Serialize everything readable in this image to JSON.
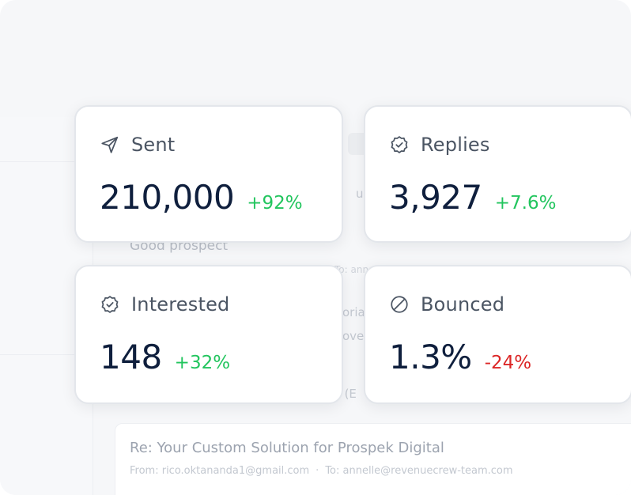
{
  "background": {
    "fragments": {
      "request_stub": "ue",
      "good_prospect": "Good prospect",
      "to_stub": "To: ann",
      "fragment_a": "oria",
      "fragment_b": "ove",
      "fragment_c": "s (E"
    },
    "email": {
      "subject": "Re: Your Custom Solution for Prospek Digital",
      "from": "From: rico.oktananda1@gmail.com",
      "to": "To: annelle@revenuecrew-team.com"
    }
  },
  "stats": {
    "sent": {
      "label": "Sent",
      "value": "210,000",
      "change": "+92%",
      "icon": "paper-plane-icon"
    },
    "replies": {
      "label": "Replies",
      "value": "3,927",
      "change": "+7.6%",
      "icon": "badge-check-icon"
    },
    "interested": {
      "label": "Interested",
      "value": "148",
      "change": "+32%",
      "icon": "badge-check-icon"
    },
    "bounced": {
      "label": "Bounced",
      "value": "1.3%",
      "change": "-24%",
      "icon": "ban-icon"
    }
  },
  "colors": {
    "positive": "#22c55e",
    "negative": "#dc2626",
    "value": "#0f1f3d",
    "label": "#4b5563"
  }
}
